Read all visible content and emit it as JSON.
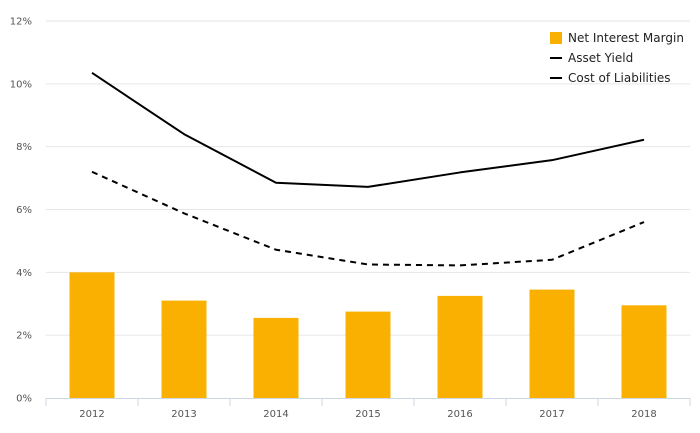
{
  "chart_data": {
    "type": "bar+line",
    "categories": [
      "2012",
      "2013",
      "2014",
      "2015",
      "2016",
      "2017",
      "2018"
    ],
    "series": [
      {
        "name": "Net Interest Margin",
        "type": "bar",
        "color": "#F9B000",
        "values": [
          4.0,
          3.1,
          2.55,
          2.75,
          3.25,
          3.45,
          2.95
        ]
      },
      {
        "name": "Asset Yield",
        "type": "line",
        "style": "solid",
        "color": "#000000",
        "values": [
          10.35,
          8.4,
          6.85,
          6.72,
          7.18,
          7.57,
          8.22
        ]
      },
      {
        "name": "Cost of Liabilities",
        "type": "line",
        "style": "dashed",
        "color": "#000000",
        "values": [
          7.2,
          5.88,
          4.72,
          4.25,
          4.22,
          4.4,
          5.6
        ]
      }
    ],
    "y_ticks": [
      "0%",
      "2%",
      "4%",
      "6%",
      "8%",
      "10%",
      "12%"
    ],
    "ylim": [
      0,
      12
    ],
    "grid": true,
    "legend_position": "top-right"
  },
  "legend": {
    "items": [
      "Net Interest Margin",
      "Asset Yield",
      "Cost of Liabilities"
    ]
  }
}
